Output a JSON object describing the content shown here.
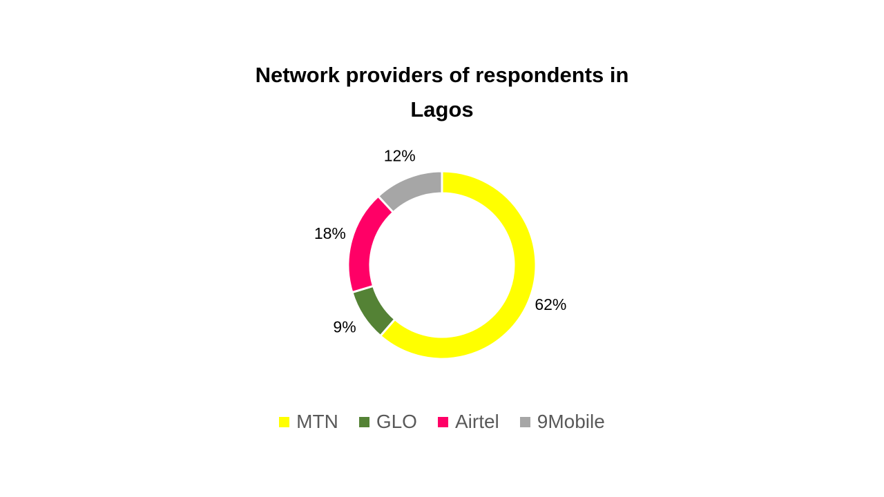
{
  "chart_data": {
    "type": "donut",
    "title": "Network providers of respondents in Lagos",
    "categories": [
      "MTN",
      "GLO",
      "Airtel",
      "9Mobile"
    ],
    "values": [
      62,
      9,
      18,
      12
    ],
    "value_labels": [
      "62%",
      "9%",
      "18%",
      "12%"
    ],
    "colors": [
      "#ffff00",
      "#548235",
      "#ff0066",
      "#a6a6a6"
    ],
    "legend": "bottom"
  }
}
